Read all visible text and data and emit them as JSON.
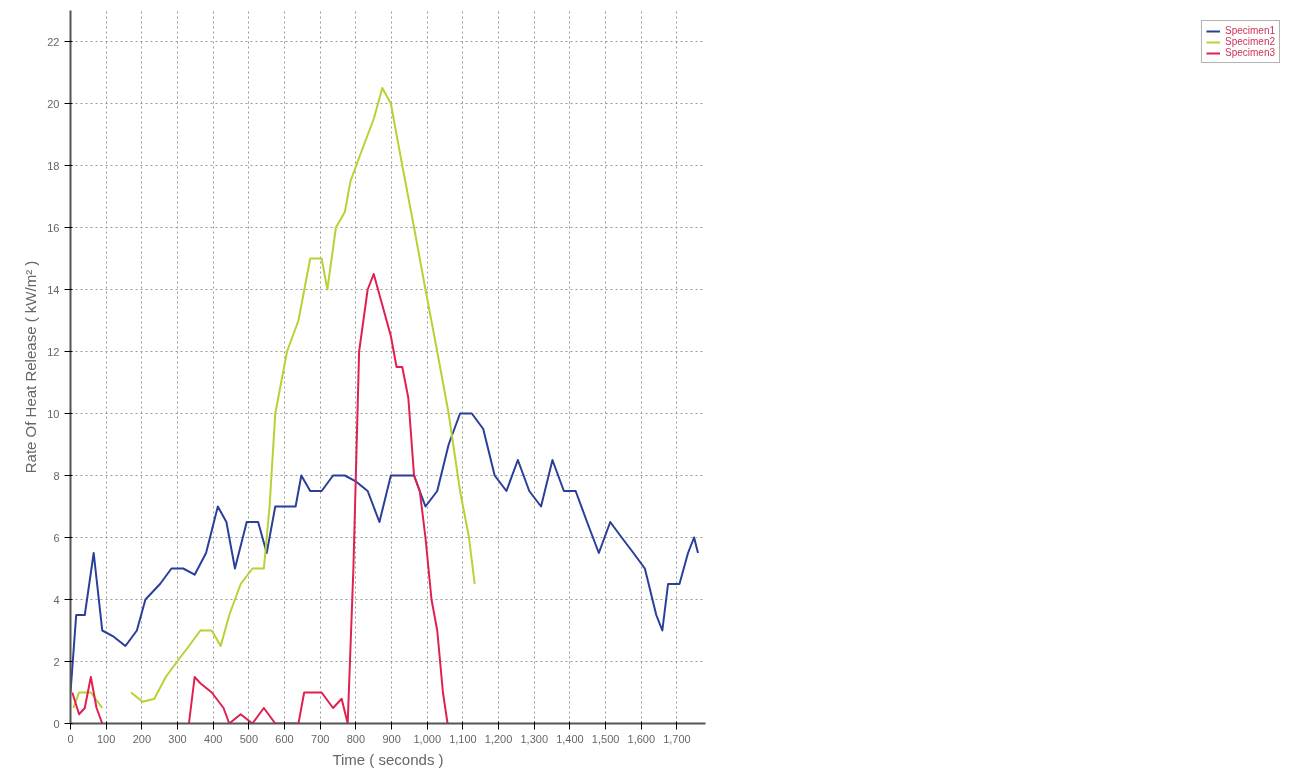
{
  "chart_data": {
    "type": "line",
    "xlabel": "Time ( seconds )",
    "ylabel": "Rate Of Heat Release ( kW/m² )",
    "xlim": [
      0,
      1780
    ],
    "ylim": [
      0,
      23
    ],
    "xticks": [
      0,
      100,
      200,
      300,
      400,
      500,
      600,
      700,
      800,
      900,
      {
        "value": 1000,
        "label": "1,000"
      },
      {
        "value": 1100,
        "label": "1,100"
      },
      {
        "value": 1200,
        "label": "1,200"
      },
      {
        "value": 1300,
        "label": "1,300"
      },
      {
        "value": 1400,
        "label": "1,400"
      },
      {
        "value": 1500,
        "label": "1,500"
      },
      {
        "value": 1600,
        "label": "1,600"
      },
      {
        "value": 1700,
        "label": "1,700"
      }
    ],
    "yticks": [
      0,
      2,
      4,
      6,
      8,
      10,
      12,
      14,
      16,
      18,
      20,
      22
    ],
    "grid": true,
    "legend": "top right",
    "line_style": "solid",
    "series": [
      {
        "name": "Specimen1",
        "color": "#2b3f9a",
        "x": [
          0,
          16,
          40,
          65,
          89,
          121,
          154,
          186,
          210,
          251,
          283,
          316,
          348,
          380,
          413,
          437,
          461,
          494,
          526,
          550,
          574,
          607,
          631,
          647,
          672,
          704,
          736,
          769,
          801,
          833,
          866,
          898,
          930,
          963,
          995,
          1028,
          1060,
          1092,
          1125,
          1157,
          1189,
          1222,
          1254,
          1286,
          1319,
          1351,
          1383,
          1416,
          1448,
          1481,
          1513,
          1545,
          1578,
          1610,
          1642,
          1659,
          1675,
          1707,
          1731,
          1748,
          1759
        ],
        "values": [
          1,
          3.5,
          3.5,
          5.5,
          3,
          2.8,
          2.5,
          3,
          4,
          4.5,
          5,
          5,
          4.8,
          5.5,
          7,
          6.5,
          5,
          6.5,
          6.5,
          5.5,
          7,
          7,
          7,
          8,
          7.5,
          7.5,
          8,
          8,
          7.8,
          7.5,
          6.5,
          8,
          8,
          8,
          7,
          7.5,
          9,
          10,
          10,
          9.5,
          8,
          7.5,
          8.5,
          7.5,
          7,
          8.5,
          7.5,
          7.5,
          6.5,
          5.5,
          6.5,
          6,
          5.5,
          5,
          3.5,
          3,
          4.5,
          4.5,
          5.5,
          6,
          5.5
        ]
      },
      {
        "name": "Specimen2",
        "color": "#b5d334",
        "x": [
          8,
          24,
          57,
          89,
          130,
          170,
          202,
          235,
          267,
          299,
          332,
          364,
          396,
          421,
          445,
          477,
          510,
          542,
          558,
          574,
          607,
          639,
          672,
          704,
          720,
          744,
          769,
          785,
          817,
          850,
          874,
          898,
          930,
          963,
          995,
          1028,
          1060,
          1092,
          1117,
          1133
        ],
        "values": [
          0.5,
          1,
          1,
          0.5,
          null,
          1,
          0.7,
          0.8,
          1.5,
          2,
          2.5,
          3,
          3,
          2.5,
          3.5,
          4.5,
          5,
          5,
          7,
          10,
          12,
          13,
          15,
          15,
          14,
          16,
          16.5,
          17.5,
          18.5,
          19.5,
          20.5,
          20,
          18,
          16,
          14,
          12,
          10,
          7.5,
          6,
          4.5
        ]
      },
      {
        "name": "Specimen3",
        "color": "#e0204f",
        "x": [
          5,
          24,
          40,
          57,
          73,
          89,
          200,
          332,
          348,
          364,
          396,
          429,
          445,
          477,
          510,
          542,
          574,
          639,
          655,
          704,
          736,
          760,
          777,
          793,
          809,
          833,
          850,
          874,
          898,
          914,
          930,
          947,
          963,
          979,
          995,
          1012,
          1028,
          1044,
          1057
        ],
        "values": [
          1,
          0.3,
          0.5,
          1.5,
          0.5,
          0,
          null,
          0,
          1.5,
          1.3,
          1,
          0.5,
          0,
          0.3,
          0,
          0.5,
          0,
          0,
          1,
          1,
          0.5,
          0.8,
          0,
          5,
          12,
          14,
          14.5,
          13.5,
          12.5,
          11.5,
          11.5,
          10.5,
          8,
          7.5,
          6,
          4,
          3,
          1,
          0
        ]
      }
    ]
  }
}
